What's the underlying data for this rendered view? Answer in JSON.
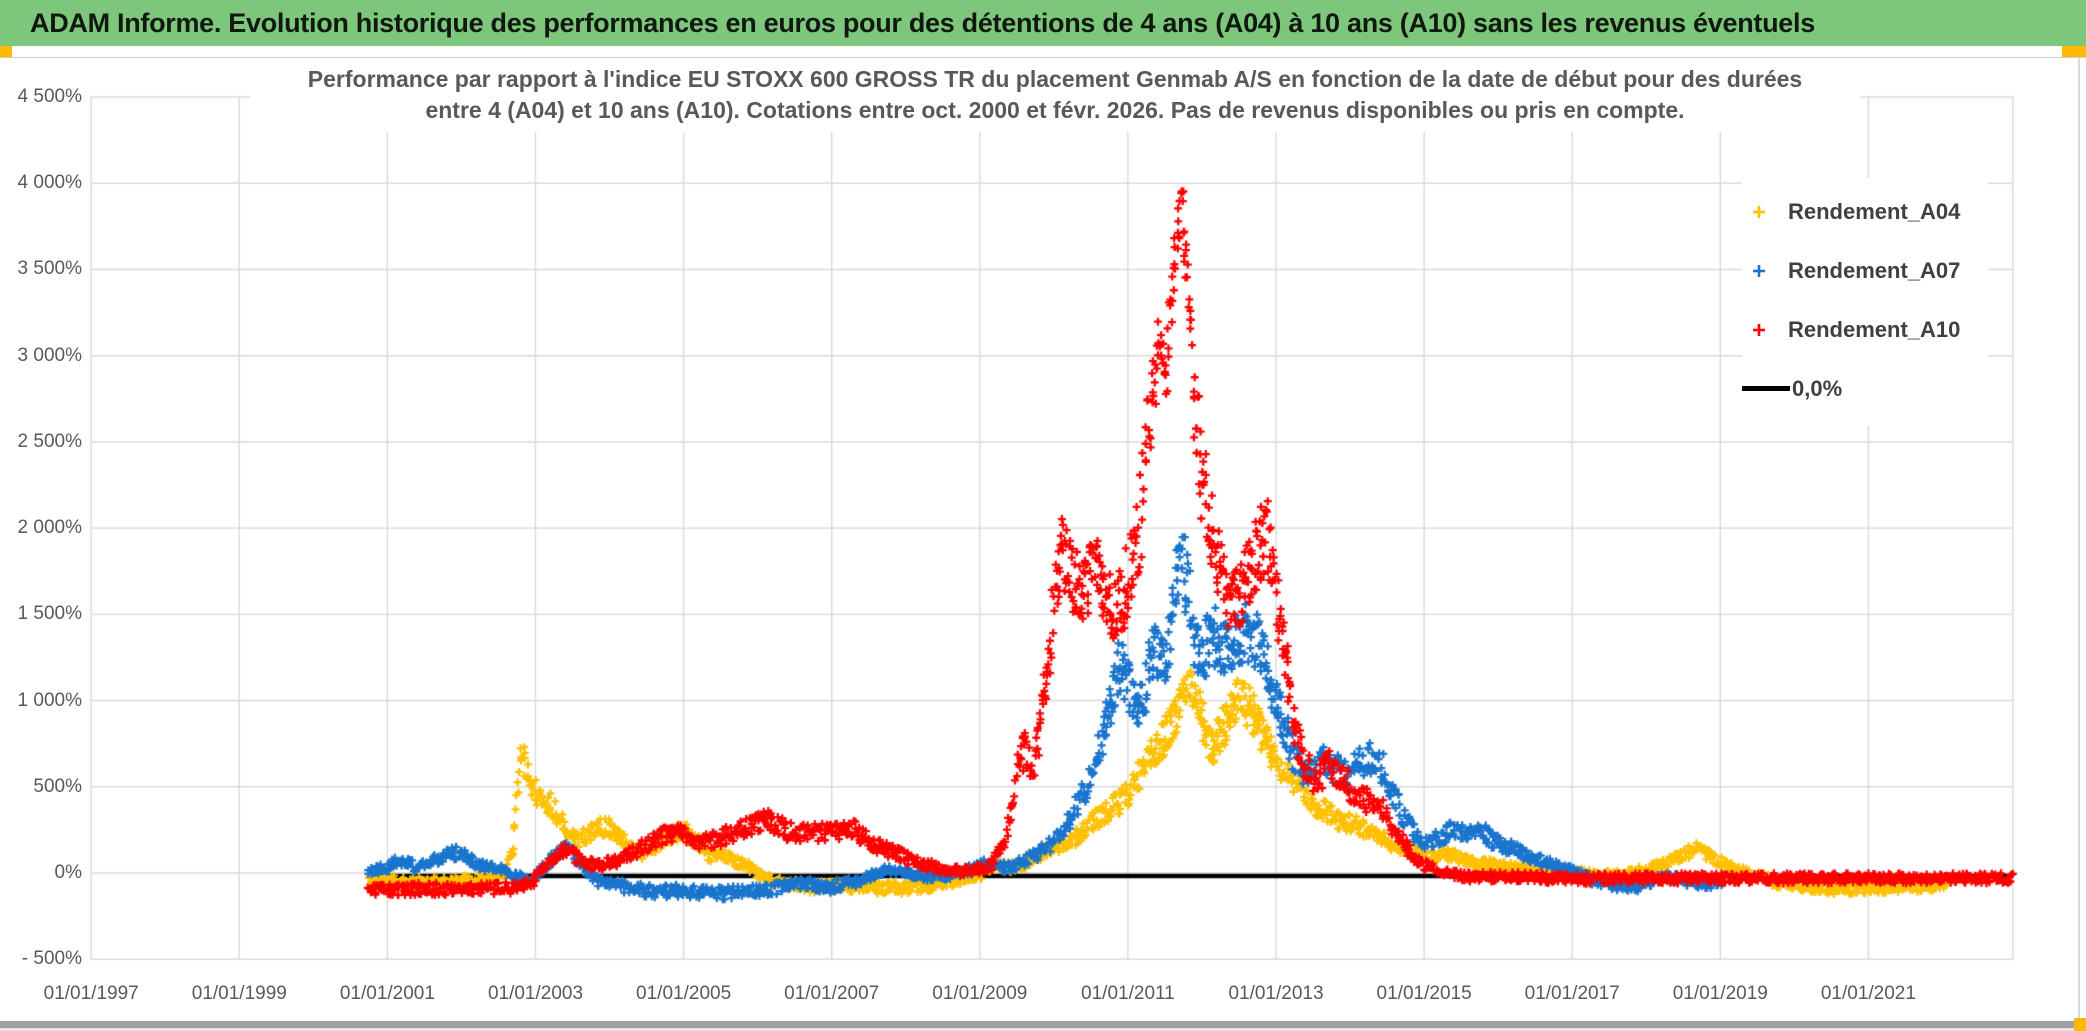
{
  "banner": {
    "title": "ADAM Informe. Evolution historique des performances en euros pour des détentions de 4 ans (A04) à 10 ans (A10) sans les revenus éventuels"
  },
  "chart": {
    "title_line1": "Performance par rapport à l'indice EU STOXX 600 GROSS TR  du placement Genmab A/S en fonction de la date de début pour des durées",
    "title_line2": "entre 4 (A04) et 10 ans (A10). Cotations entre oct. 2000 et févr. 2026. Pas de revenus disponibles ou pris en compte.",
    "legend": [
      {
        "label": "Rendement_A04",
        "color": "#FFC000",
        "marker": "plus"
      },
      {
        "label": "Rendement_A07",
        "color": "#1874CD",
        "marker": "plus"
      },
      {
        "label": "Rendement_A10",
        "color": "#FF0000",
        "marker": "plus"
      },
      {
        "label": "0,0%",
        "color": "#000000",
        "marker": "line"
      }
    ],
    "colors": {
      "banner_green": "#7CC77C",
      "accent_orange": "#FFB900",
      "grid": "#D9D9D9",
      "axis_text": "#595959",
      "title_text": "#595959",
      "series_a04": "#FFC000",
      "series_a07": "#1874CD",
      "series_a10": "#FF0000",
      "zero_line": "#000000"
    }
  },
  "chart_data": {
    "type": "scatter",
    "title": "Performance par rapport à l'indice EU STOXX 600 GROSS TR du placement Genmab A/S en fonction de la date de début pour des durées entre 4 (A04) et 10 ans (A10). Cotations entre oct. 2000 et févr. 2026. Pas de revenus disponibles ou pris en compte.",
    "grid": true,
    "legend_position": "right",
    "marker": "plus",
    "x_axis": {
      "tick_labels": [
        "01/01/1997",
        "01/01/1999",
        "01/01/2001",
        "01/01/2003",
        "01/01/2005",
        "01/01/2007",
        "01/01/2009",
        "01/01/2011",
        "01/01/2013",
        "01/01/2015",
        "01/01/2017",
        "01/01/2019",
        "01/01/2021"
      ],
      "tick_years": [
        1997,
        1999,
        2001,
        2003,
        2005,
        2007,
        2009,
        2011,
        2013,
        2015,
        2017,
        2019,
        2021
      ],
      "min_year": 1997,
      "max_year": 2022.95
    },
    "y_axis": {
      "tick_labels": [
        "4 500%",
        "4 000%",
        "3 500%",
        "3 000%",
        "2 500%",
        "2 000%",
        "1 500%",
        "1 000%",
        "500%",
        "0%",
        "- 500%"
      ],
      "tick_values": [
        4500,
        4000,
        3500,
        3000,
        2500,
        2000,
        1500,
        1000,
        500,
        0,
        -500
      ],
      "min": -500,
      "max": 4500,
      "unit": "%"
    },
    "series": [
      {
        "name": "Rendement_A04",
        "color": "#FFC000",
        "kind": "scatter",
        "points": [
          [
            2000.75,
            -30
          ],
          [
            2001.2,
            -50
          ],
          [
            2001.7,
            -60
          ],
          [
            2002.2,
            -40
          ],
          [
            2002.55,
            -15
          ],
          [
            2002.7,
            150
          ],
          [
            2002.8,
            720
          ],
          [
            2002.9,
            600
          ],
          [
            2003.05,
            430
          ],
          [
            2003.2,
            400
          ],
          [
            2003.4,
            280
          ],
          [
            2003.55,
            190
          ],
          [
            2003.75,
            230
          ],
          [
            2003.95,
            280
          ],
          [
            2004.1,
            240
          ],
          [
            2004.25,
            150
          ],
          [
            2004.45,
            120
          ],
          [
            2004.65,
            170
          ],
          [
            2004.85,
            230
          ],
          [
            2005.05,
            235
          ],
          [
            2005.2,
            170
          ],
          [
            2005.35,
            95
          ],
          [
            2005.5,
            115
          ],
          [
            2005.7,
            70
          ],
          [
            2005.9,
            30
          ],
          [
            2006.1,
            -35
          ],
          [
            2006.4,
            -70
          ],
          [
            2006.8,
            -80
          ],
          [
            2007.2,
            -70
          ],
          [
            2007.6,
            -90
          ],
          [
            2008,
            -85
          ],
          [
            2008.4,
            -70
          ],
          [
            2008.7,
            -40
          ],
          [
            2009,
            -15
          ],
          [
            2009.2,
            55
          ],
          [
            2009.35,
            25
          ],
          [
            2009.55,
            45
          ],
          [
            2009.75,
            95
          ],
          [
            2009.95,
            140
          ],
          [
            2010.15,
            170
          ],
          [
            2010.35,
            230
          ],
          [
            2010.55,
            300
          ],
          [
            2010.75,
            370
          ],
          [
            2010.95,
            430
          ],
          [
            2011.15,
            560
          ],
          [
            2011.35,
            700
          ],
          [
            2011.55,
            820
          ],
          [
            2011.7,
            960
          ],
          [
            2011.82,
            1130
          ],
          [
            2011.92,
            1000
          ],
          [
            2012.02,
            860
          ],
          [
            2012.12,
            720
          ],
          [
            2012.25,
            820
          ],
          [
            2012.4,
            950
          ],
          [
            2012.52,
            1040
          ],
          [
            2012.65,
            950
          ],
          [
            2012.8,
            800
          ],
          [
            2012.95,
            700
          ],
          [
            2013.1,
            600
          ],
          [
            2013.3,
            500
          ],
          [
            2013.5,
            400
          ],
          [
            2013.7,
            350
          ],
          [
            2013.9,
            300
          ],
          [
            2014.1,
            275
          ],
          [
            2014.3,
            220
          ],
          [
            2014.5,
            180
          ],
          [
            2014.7,
            150
          ],
          [
            2014.9,
            120
          ],
          [
            2015.1,
            90
          ],
          [
            2015.3,
            110
          ],
          [
            2015.5,
            80
          ],
          [
            2015.7,
            60
          ],
          [
            2015.9,
            50
          ],
          [
            2016.2,
            28
          ],
          [
            2016.5,
            10
          ],
          [
            2016.8,
            20
          ],
          [
            2017.1,
            0
          ],
          [
            2017.4,
            -20
          ],
          [
            2017.7,
            -10
          ],
          [
            2018,
            20
          ],
          [
            2018.3,
            60
          ],
          [
            2018.5,
            105
          ],
          [
            2018.65,
            140
          ],
          [
            2018.8,
            110
          ],
          [
            2019,
            60
          ],
          [
            2019.2,
            25
          ],
          [
            2019.5,
            -20
          ],
          [
            2019.8,
            -55
          ],
          [
            2020.2,
            -75
          ],
          [
            2020.6,
            -90
          ],
          [
            2021,
            -85
          ],
          [
            2021.5,
            -80
          ],
          [
            2022.05,
            -70
          ]
        ]
      },
      {
        "name": "Rendement_A07",
        "color": "#1874CD",
        "kind": "scatter",
        "points": [
          [
            2000.75,
            10
          ],
          [
            2001,
            40
          ],
          [
            2001.2,
            80
          ],
          [
            2001.4,
            25
          ],
          [
            2001.6,
            60
          ],
          [
            2001.85,
            130
          ],
          [
            2002.05,
            95
          ],
          [
            2002.3,
            40
          ],
          [
            2002.5,
            25
          ],
          [
            2002.7,
            -20
          ],
          [
            2002.9,
            -40
          ],
          [
            2003.1,
            20
          ],
          [
            2003.3,
            120
          ],
          [
            2003.45,
            175
          ],
          [
            2003.6,
            60
          ],
          [
            2003.8,
            -40
          ],
          [
            2004,
            -60
          ],
          [
            2004.3,
            -90
          ],
          [
            2004.6,
            -110
          ],
          [
            2005,
            -100
          ],
          [
            2005.4,
            -120
          ],
          [
            2005.8,
            -110
          ],
          [
            2006.2,
            -90
          ],
          [
            2006.6,
            -60
          ],
          [
            2007,
            -80
          ],
          [
            2007.4,
            -40
          ],
          [
            2007.7,
            15
          ],
          [
            2008,
            5
          ],
          [
            2008.3,
            -20
          ],
          [
            2008.6,
            -10
          ],
          [
            2008.9,
            20
          ],
          [
            2009.1,
            55
          ],
          [
            2009.3,
            30
          ],
          [
            2009.5,
            50
          ],
          [
            2009.7,
            90
          ],
          [
            2009.9,
            150
          ],
          [
            2010.1,
            220
          ],
          [
            2010.3,
            380
          ],
          [
            2010.5,
            560
          ],
          [
            2010.65,
            800
          ],
          [
            2010.8,
            1050
          ],
          [
            2010.9,
            1230
          ],
          [
            2011,
            1100
          ],
          [
            2011.1,
            930
          ],
          [
            2011.2,
            1010
          ],
          [
            2011.35,
            1280
          ],
          [
            2011.5,
            1230
          ],
          [
            2011.6,
            1480
          ],
          [
            2011.7,
            1930
          ],
          [
            2011.8,
            1680
          ],
          [
            2011.9,
            1320
          ],
          [
            2012,
            1260
          ],
          [
            2012.15,
            1380
          ],
          [
            2012.3,
            1290
          ],
          [
            2012.45,
            1340
          ],
          [
            2012.6,
            1390
          ],
          [
            2012.75,
            1340
          ],
          [
            2012.9,
            1180
          ],
          [
            2013.05,
            950
          ],
          [
            2013.2,
            720
          ],
          [
            2013.35,
            600
          ],
          [
            2013.5,
            560
          ],
          [
            2013.65,
            650
          ],
          [
            2013.8,
            600
          ],
          [
            2013.95,
            560
          ],
          [
            2014.1,
            610
          ],
          [
            2014.25,
            680
          ],
          [
            2014.4,
            640
          ],
          [
            2014.55,
            500
          ],
          [
            2014.7,
            340
          ],
          [
            2014.85,
            240
          ],
          [
            2015,
            180
          ],
          [
            2015.2,
            200
          ],
          [
            2015.4,
            250
          ],
          [
            2015.6,
            230
          ],
          [
            2015.75,
            265
          ],
          [
            2015.9,
            195
          ],
          [
            2016.1,
            150
          ],
          [
            2016.3,
            125
          ],
          [
            2016.5,
            80
          ],
          [
            2016.8,
            40
          ],
          [
            2017,
            10
          ],
          [
            2017.3,
            -45
          ],
          [
            2017.6,
            -70
          ],
          [
            2017.9,
            -80
          ],
          [
            2018.1,
            -40
          ],
          [
            2018.3,
            -25
          ],
          [
            2018.5,
            -40
          ],
          [
            2018.8,
            -60
          ],
          [
            2019.05,
            -50
          ]
        ]
      },
      {
        "name": "Rendement_A10",
        "color": "#FF0000",
        "kind": "scatter",
        "points": [
          [
            2000.75,
            -95
          ],
          [
            2001.5,
            -95
          ],
          [
            2002.2,
            -90
          ],
          [
            2002.6,
            -90
          ],
          [
            2002.95,
            -55
          ],
          [
            2003.15,
            45
          ],
          [
            2003.4,
            130
          ],
          [
            2003.6,
            80
          ],
          [
            2003.8,
            40
          ],
          [
            2004.1,
            70
          ],
          [
            2004.4,
            140
          ],
          [
            2004.7,
            210
          ],
          [
            2004.95,
            240
          ],
          [
            2005.2,
            170
          ],
          [
            2005.45,
            195
          ],
          [
            2005.7,
            240
          ],
          [
            2005.95,
            290
          ],
          [
            2006.15,
            310
          ],
          [
            2006.4,
            240
          ],
          [
            2006.7,
            230
          ],
          [
            2007,
            240
          ],
          [
            2007.3,
            250
          ],
          [
            2007.6,
            160
          ],
          [
            2008,
            90
          ],
          [
            2008.4,
            30
          ],
          [
            2008.8,
            10
          ],
          [
            2009.15,
            40
          ],
          [
            2009.35,
            200
          ],
          [
            2009.5,
            560
          ],
          [
            2009.62,
            760
          ],
          [
            2009.72,
            560
          ],
          [
            2009.85,
            950
          ],
          [
            2009.98,
            1500
          ],
          [
            2010.1,
            1850
          ],
          [
            2010.25,
            1700
          ],
          [
            2010.4,
            1600
          ],
          [
            2010.55,
            1800
          ],
          [
            2010.7,
            1600
          ],
          [
            2010.85,
            1520
          ],
          [
            2011,
            1700
          ],
          [
            2011.15,
            1950
          ],
          [
            2011.3,
            2600
          ],
          [
            2011.42,
            3050
          ],
          [
            2011.52,
            2880
          ],
          [
            2011.62,
            3500
          ],
          [
            2011.72,
            3930
          ],
          [
            2011.82,
            3380
          ],
          [
            2011.9,
            2750
          ],
          [
            2012,
            2320
          ],
          [
            2012.1,
            2040
          ],
          [
            2012.25,
            1780
          ],
          [
            2012.4,
            1520
          ],
          [
            2012.55,
            1620
          ],
          [
            2012.7,
            1820
          ],
          [
            2012.85,
            2000
          ],
          [
            2012.95,
            1760
          ],
          [
            2013.1,
            1320
          ],
          [
            2013.25,
            820
          ],
          [
            2013.4,
            620
          ],
          [
            2013.55,
            520
          ],
          [
            2013.7,
            650
          ],
          [
            2013.85,
            560
          ],
          [
            2014,
            500
          ],
          [
            2014.2,
            430
          ],
          [
            2014.4,
            380
          ],
          [
            2014.6,
            255
          ],
          [
            2014.8,
            125
          ],
          [
            2015,
            45
          ],
          [
            2015.3,
            -5
          ],
          [
            2015.6,
            -25
          ],
          [
            2016,
            -20
          ],
          [
            2017,
            -35
          ],
          [
            2018,
            -30
          ],
          [
            2019,
            -30
          ],
          [
            2020,
            -30
          ],
          [
            2021,
            -30
          ],
          [
            2022,
            -30
          ],
          [
            2022.95,
            -30
          ]
        ]
      },
      {
        "name": "0,0%",
        "color": "#000000",
        "kind": "line",
        "points": [
          [
            2000.75,
            0
          ],
          [
            2022.95,
            0
          ]
        ]
      }
    ]
  }
}
